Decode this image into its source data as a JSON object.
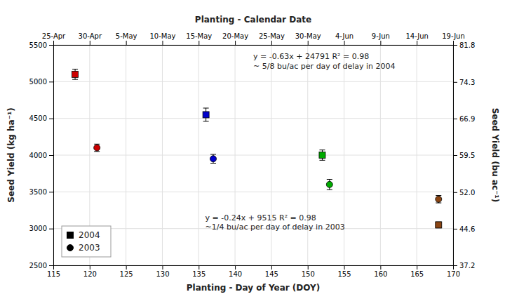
{
  "chart_data": {
    "type": "scatter",
    "x2label": "Planting - Calendar Date",
    "xlabel": "Planting - Day of Year (DOY)",
    "ylabel": "Seed Yield (kg ha⁻¹)",
    "y2label": "Seed Yield (bu ac⁻¹)",
    "xlim": [
      115,
      170
    ],
    "xticks": [
      115,
      120,
      125,
      130,
      135,
      140,
      145,
      150,
      155,
      160,
      165,
      170
    ],
    "x2lim": [
      115,
      170
    ],
    "x2ticks": [
      {
        "value": 115,
        "label": "25-Apr"
      },
      {
        "value": 120,
        "label": "30-Apr"
      },
      {
        "value": 125,
        "label": "5-May"
      },
      {
        "value": 130,
        "label": "10-May"
      },
      {
        "value": 135,
        "label": "15-May"
      },
      {
        "value": 140,
        "label": "20-May"
      },
      {
        "value": 145,
        "label": "25-May"
      },
      {
        "value": 150,
        "label": "30-May"
      },
      {
        "value": 155,
        "label": "4-Jun"
      },
      {
        "value": 160,
        "label": "9-Jun"
      },
      {
        "value": 165,
        "label": "14-Jun"
      },
      {
        "value": 170,
        "label": "19-Jun"
      }
    ],
    "ylim": [
      2500,
      5500
    ],
    "yticks": [
      2500,
      3000,
      3500,
      4000,
      4500,
      5000,
      5500
    ],
    "y2lim": [
      37.2,
      81.8
    ],
    "y2ticks": [
      37.2,
      44.6,
      {
        "value": 52.0,
        "label": "52.0"
      },
      59.5,
      66.9,
      74.3,
      81.8
    ],
    "grid": true,
    "legend": "lower left",
    "series": [
      {
        "name": "2004",
        "marker": "square",
        "color": "#000000",
        "x": [
          118,
          136,
          152,
          168
        ],
        "values": [
          5100,
          4550,
          4000,
          3050
        ],
        "errors": [
          70,
          90,
          70,
          40
        ],
        "colors": [
          "#cc0000",
          "#0000cc",
          "#00aa00",
          "#8B4513"
        ]
      },
      {
        "name": "2003",
        "marker": "circle",
        "color": "#000000",
        "x": [
          121,
          137,
          153,
          168
        ],
        "values": [
          4100,
          3950,
          3600,
          3400
        ],
        "errors": [
          50,
          60,
          70,
          50
        ],
        "colors": [
          "#cc0000",
          "#0000cc",
          "#00aa00",
          "#8B4513"
        ]
      }
    ],
    "annotations": [
      "y = -0.63x + 24791  R² = 0.98\n~ 5/8 bu/ac per day of delay in 2004",
      "y = -0.24x + 9515  R² = 0.98\n~1/4 bu/ac per day of delay in 2003"
    ]
  }
}
